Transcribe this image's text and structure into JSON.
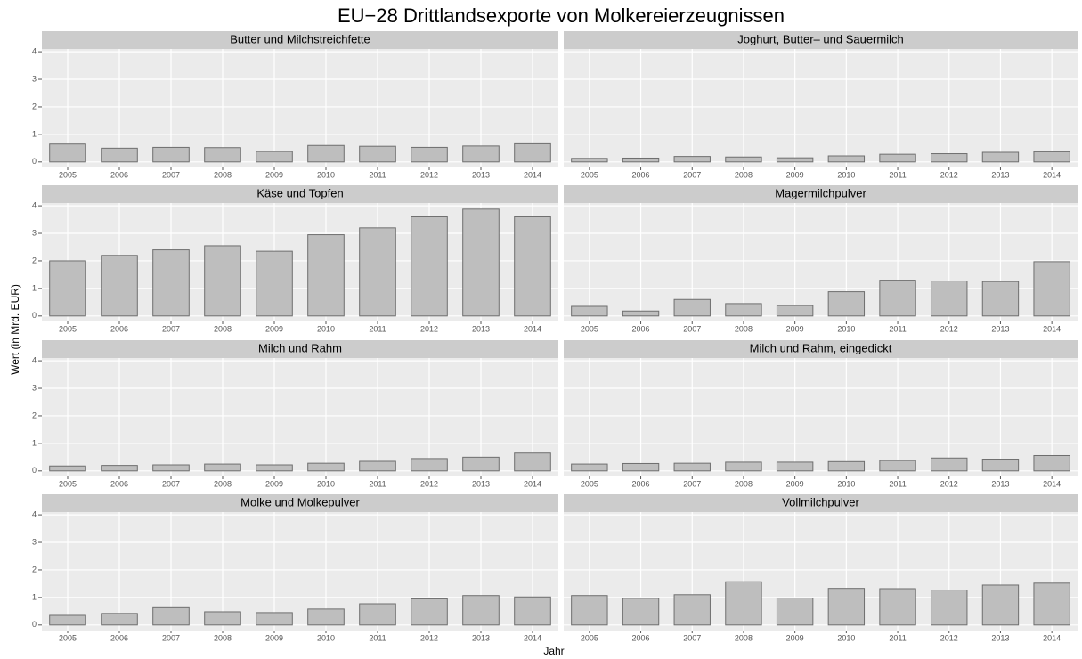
{
  "chart_data": {
    "type": "bar",
    "title": "EU−28 Drittlandsexporte von Molkereierzeugnissen",
    "ylabel": "Wert (in Mrd. EUR)",
    "xlabel": "Jahr",
    "categories": [
      "2005",
      "2006",
      "2007",
      "2008",
      "2009",
      "2010",
      "2011",
      "2012",
      "2013",
      "2014"
    ],
    "ylim": [
      -0.2,
      4.1
    ],
    "yticks": [
      0,
      1,
      2,
      3,
      4
    ],
    "grid": true,
    "color": "#bebebe",
    "edge_color": "#6e6e6e",
    "panels": [
      {
        "title": "Butter und Milchstreichfette",
        "values": [
          0.65,
          0.5,
          0.53,
          0.52,
          0.38,
          0.6,
          0.57,
          0.53,
          0.58,
          0.66
        ]
      },
      {
        "title": "Joghurt, Butter– und Sauermilch",
        "values": [
          0.13,
          0.14,
          0.2,
          0.18,
          0.15,
          0.22,
          0.28,
          0.3,
          0.35,
          0.37
        ]
      },
      {
        "title": "Käse und Topfen",
        "values": [
          2.0,
          2.2,
          2.4,
          2.55,
          2.35,
          2.95,
          3.2,
          3.6,
          3.88,
          3.6
        ]
      },
      {
        "title": "Magermilchpulver",
        "values": [
          0.35,
          0.18,
          0.6,
          0.45,
          0.38,
          0.88,
          1.3,
          1.27,
          1.25,
          1.97
        ]
      },
      {
        "title": "Milch und Rahm",
        "values": [
          0.18,
          0.2,
          0.22,
          0.25,
          0.22,
          0.28,
          0.35,
          0.45,
          0.5,
          0.65
        ]
      },
      {
        "title": "Milch und Rahm, eingedickt",
        "values": [
          0.25,
          0.27,
          0.28,
          0.32,
          0.32,
          0.34,
          0.38,
          0.47,
          0.43,
          0.56
        ]
      },
      {
        "title": "Molke und Molkepulver",
        "values": [
          0.35,
          0.42,
          0.63,
          0.48,
          0.45,
          0.58,
          0.77,
          0.95,
          1.07,
          1.02
        ]
      },
      {
        "title": "Vollmilchpulver",
        "values": [
          1.07,
          0.97,
          1.1,
          1.57,
          0.98,
          1.33,
          1.32,
          1.27,
          1.45,
          1.52
        ]
      }
    ]
  }
}
